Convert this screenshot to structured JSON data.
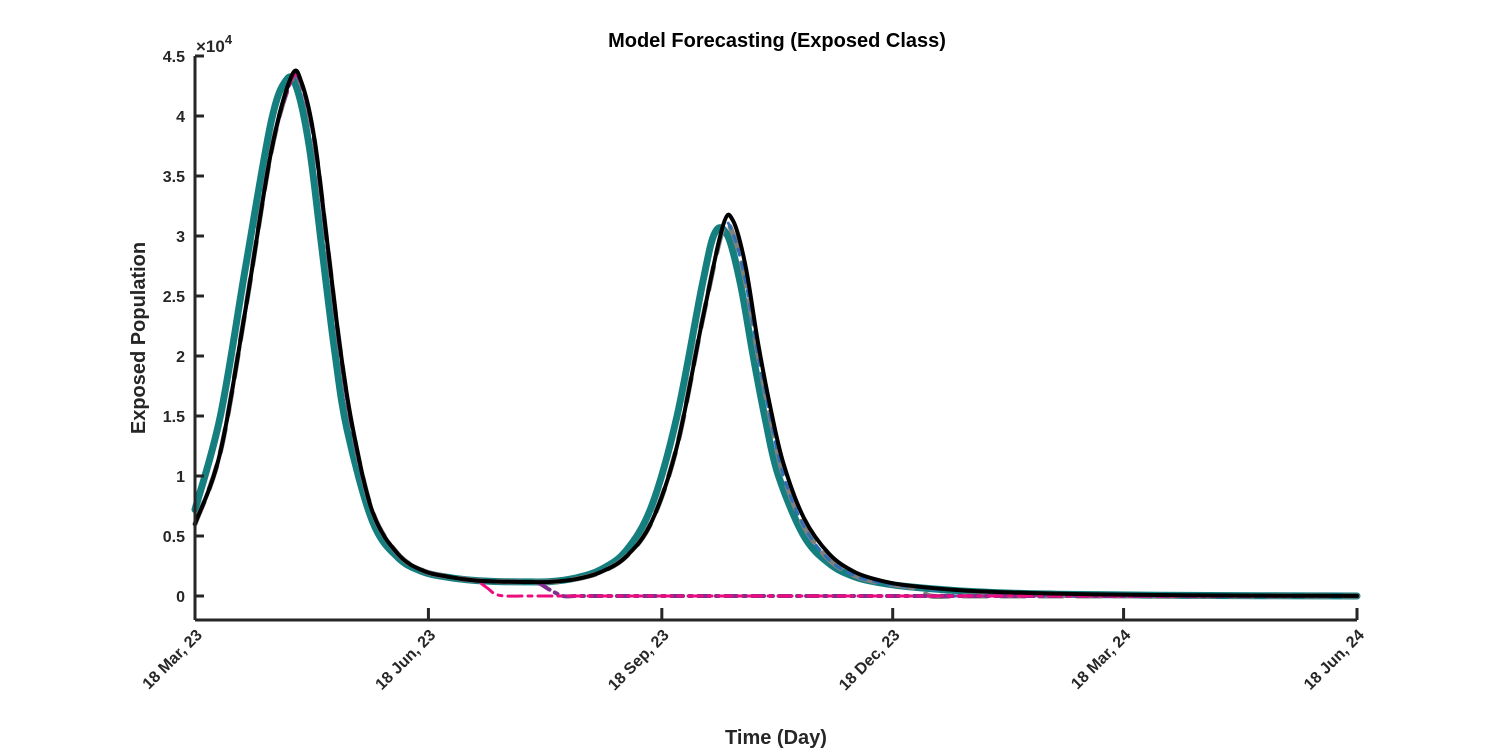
{
  "chart_data": {
    "type": "line",
    "title": "Model Forecasting (Exposed Class)",
    "xlabel": "Time (Day)",
    "ylabel": "Exposed Population",
    "y_multiplier_label": "×10",
    "y_multiplier_exponent": "4",
    "xlim": [
      0,
      458
    ],
    "ylim": [
      -0.2,
      4.5
    ],
    "x_ticks": [
      {
        "value": 0,
        "label": "18 Mar, 23"
      },
      {
        "value": 92,
        "label": "18 Jun, 23"
      },
      {
        "value": 184,
        "label": "18 Sep, 23"
      },
      {
        "value": 275,
        "label": "18 Dec, 23"
      },
      {
        "value": 366,
        "label": "18 Mar, 24"
      },
      {
        "value": 458,
        "label": "18 Jun, 24"
      }
    ],
    "y_ticks": [
      {
        "value": 0,
        "label": "0"
      },
      {
        "value": 0.5,
        "label": "0.5"
      },
      {
        "value": 1,
        "label": "1"
      },
      {
        "value": 1.5,
        "label": "1.5"
      },
      {
        "value": 2,
        "label": "2"
      },
      {
        "value": 2.5,
        "label": "2.5"
      },
      {
        "value": 3,
        "label": "3"
      },
      {
        "value": 3.5,
        "label": "3.5"
      },
      {
        "value": 4,
        "label": "4"
      },
      {
        "value": 4.5,
        "label": "4.5"
      }
    ],
    "series": [
      {
        "name": "teal",
        "color": "#157F80",
        "dash": "",
        "width": 7,
        "x": [
          0,
          10,
          20,
          30,
          36,
          40,
          45,
          50,
          55,
          60,
          70,
          80,
          90,
          100,
          110,
          120,
          130,
          140,
          150,
          160,
          170,
          180,
          190,
          200,
          205,
          210,
          215,
          220,
          225,
          230,
          240,
          250,
          260,
          270,
          280,
          300,
          320,
          340,
          360,
          380,
          400,
          420,
          440,
          458
        ],
        "y": [
          0.72,
          1.5,
          2.75,
          3.95,
          4.3,
          4.24,
          3.75,
          2.9,
          2.05,
          1.38,
          0.62,
          0.32,
          0.2,
          0.155,
          0.13,
          0.12,
          0.118,
          0.12,
          0.15,
          0.22,
          0.38,
          0.75,
          1.5,
          2.6,
          3.03,
          3.0,
          2.6,
          2.0,
          1.45,
          1.0,
          0.5,
          0.27,
          0.16,
          0.11,
          0.08,
          0.045,
          0.025,
          0.015,
          0.01,
          0.006,
          0.004,
          0.002,
          0.001,
          0.0
        ]
      },
      {
        "name": "gray",
        "color": "#808080",
        "dash": "24 14",
        "width": 5,
        "x": [
          0,
          10,
          20,
          30,
          38,
          42,
          47,
          52,
          57,
          62,
          70,
          80,
          90,
          100,
          110,
          120,
          130,
          140,
          150,
          160,
          170,
          180,
          190,
          200,
          208,
          212,
          217,
          222,
          227,
          232,
          240,
          250,
          260,
          270,
          280,
          285,
          290,
          300,
          320,
          340,
          360,
          380,
          400,
          420,
          440,
          458
        ],
        "y": [
          0.6,
          1.2,
          2.4,
          3.7,
          4.3,
          4.26,
          3.8,
          2.95,
          2.08,
          1.4,
          0.7,
          0.35,
          0.21,
          0.16,
          0.13,
          0.12,
          0.117,
          0.118,
          0.14,
          0.2,
          0.33,
          0.62,
          1.25,
          2.3,
          3.05,
          3.02,
          2.62,
          2.0,
          1.46,
          1.0,
          0.58,
          0.3,
          0.17,
          0.11,
          0.08,
          0.06,
          0.0,
          0.0,
          0.0,
          0.0,
          0.0,
          0.0,
          0.0,
          0.0,
          0.0,
          0.0
        ]
      },
      {
        "name": "blue",
        "color": "#2F6FB5",
        "dash": "6 8",
        "width": 3,
        "x": [
          0,
          10,
          20,
          30,
          38,
          42,
          47,
          52,
          57,
          62,
          70,
          80,
          90,
          100,
          110,
          120,
          130,
          140,
          150,
          160,
          170,
          180,
          190,
          200,
          208,
          212,
          217,
          222,
          227,
          232,
          240,
          250,
          260,
          270,
          280,
          290,
          295,
          300,
          320,
          340,
          360,
          380,
          400,
          420,
          440,
          458
        ],
        "y": [
          0.6,
          1.2,
          2.4,
          3.7,
          4.3,
          4.26,
          3.8,
          2.95,
          2.08,
          1.4,
          0.7,
          0.35,
          0.21,
          0.16,
          0.13,
          0.12,
          0.117,
          0.118,
          0.14,
          0.2,
          0.33,
          0.62,
          1.25,
          2.3,
          3.05,
          3.02,
          2.62,
          2.0,
          1.46,
          1.0,
          0.58,
          0.3,
          0.17,
          0.11,
          0.08,
          0.06,
          0.0,
          0.0,
          0.0,
          0.0,
          0.0,
          0.0,
          0.0,
          0.0,
          0.0,
          0.0
        ]
      },
      {
        "name": "purple",
        "color": "#7E2F8E",
        "dash": "12 6 3 6",
        "width": 4,
        "x": [
          0,
          10,
          20,
          30,
          38,
          42,
          47,
          52,
          57,
          62,
          70,
          80,
          90,
          100,
          110,
          120,
          130,
          135,
          140,
          145,
          150,
          160,
          200,
          250,
          300,
          350,
          400,
          458
        ],
        "y": [
          0.6,
          1.2,
          2.4,
          3.7,
          4.3,
          4.26,
          3.8,
          2.95,
          2.08,
          1.4,
          0.7,
          0.35,
          0.21,
          0.16,
          0.13,
          0.12,
          0.117,
          0.11,
          0.05,
          0.0,
          0.0,
          0.0,
          0.0,
          0.0,
          0.0,
          0.0,
          0.0,
          0.0
        ]
      },
      {
        "name": "magenta",
        "color": "#EC0C7E",
        "dash": "14 6 4 6",
        "width": 3,
        "x": [
          0,
          10,
          20,
          30,
          38,
          42,
          47,
          52,
          57,
          62,
          70,
          80,
          90,
          100,
          110,
          115,
          118,
          122,
          130,
          140,
          200,
          250,
          300,
          350,
          400,
          458
        ],
        "y": [
          0.6,
          1.2,
          2.4,
          3.7,
          4.3,
          4.26,
          3.8,
          2.95,
          2.08,
          1.4,
          0.7,
          0.35,
          0.21,
          0.16,
          0.13,
          0.07,
          0.02,
          0.0,
          0.0,
          0.0,
          0.0,
          0.0,
          0.0,
          0.0,
          0.0,
          0.0
        ]
      },
      {
        "name": "black",
        "color": "#000000",
        "dash": "",
        "width": 4,
        "x": [
          0,
          10,
          20,
          30,
          38,
          42,
          47,
          52,
          57,
          62,
          70,
          80,
          90,
          100,
          110,
          120,
          130,
          140,
          150,
          160,
          170,
          180,
          190,
          200,
          208,
          212,
          217,
          222,
          227,
          232,
          240,
          250,
          260,
          270,
          280,
          300,
          320,
          340,
          360,
          380,
          400,
          420,
          440,
          458
        ],
        "y": [
          0.6,
          1.2,
          2.4,
          3.7,
          4.33,
          4.28,
          3.82,
          2.97,
          2.1,
          1.42,
          0.7,
          0.35,
          0.21,
          0.16,
          0.13,
          0.12,
          0.117,
          0.118,
          0.14,
          0.2,
          0.33,
          0.62,
          1.25,
          2.3,
          3.08,
          3.13,
          2.75,
          2.1,
          1.55,
          1.1,
          0.65,
          0.35,
          0.2,
          0.13,
          0.09,
          0.05,
          0.03,
          0.02,
          0.012,
          0.008,
          0.005,
          0.003,
          0.002,
          0.001
        ]
      }
    ]
  }
}
